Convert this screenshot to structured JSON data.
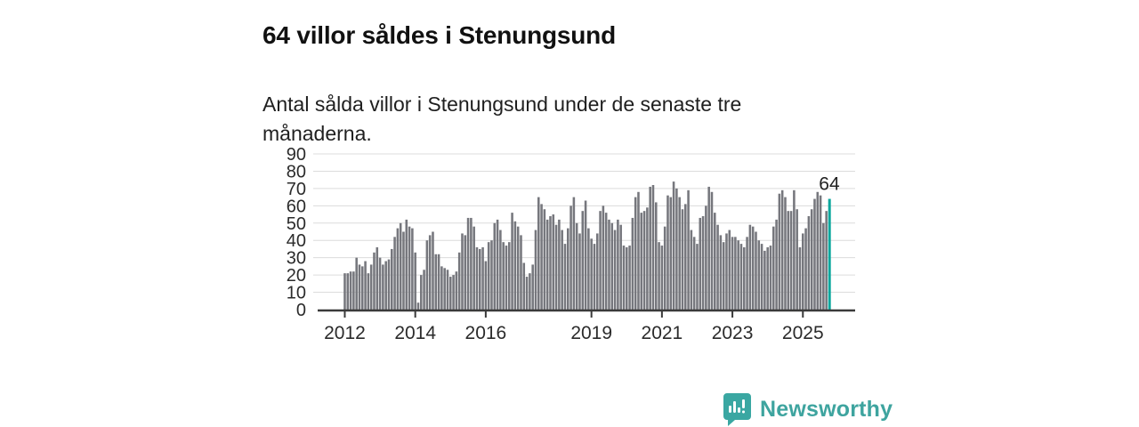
{
  "title": "64 villor såldes i Stenungsund",
  "subtitle": "Antal sålda villor i Stenungsund under de senaste tre månaderna.",
  "annotation_label": "64",
  "branding": {
    "name": "Newsworthy"
  },
  "colors": {
    "bar": "#76777d",
    "highlight": "#0ba79d",
    "grid": "#dcdcdc",
    "axis": "#3a3a3a",
    "tick_text": "#2b2b2b",
    "annotation_text": "#222222",
    "brand": "#3ea49f"
  },
  "chart_data": {
    "type": "bar",
    "title": "64 villor såldes i Stenungsund",
    "subtitle": "Antal sålda villor i Stenungsund under de senaste tre månaderna.",
    "x_start": "2012-01",
    "frequency": "monthly",
    "ylabel": "",
    "xlabel": "",
    "ylim": [
      0,
      90
    ],
    "yticks": [
      0,
      10,
      20,
      30,
      40,
      50,
      60,
      70,
      80,
      90
    ],
    "grid": true,
    "legend": "none",
    "xticks": [
      {
        "label": "2012",
        "month_index": 0
      },
      {
        "label": "2014",
        "month_index": 24
      },
      {
        "label": "2016",
        "month_index": 48
      },
      {
        "label": "2019",
        "month_index": 84
      },
      {
        "label": "2021",
        "month_index": 108
      },
      {
        "label": "2023",
        "month_index": 132
      },
      {
        "label": "2025",
        "month_index": 156
      }
    ],
    "values": [
      21,
      21,
      22,
      22,
      30,
      26,
      25,
      28,
      21,
      26,
      33,
      36,
      30,
      26,
      28,
      29,
      35,
      42,
      47,
      50,
      45,
      52,
      48,
      47,
      33,
      4,
      20,
      23,
      40,
      43,
      45,
      32,
      32,
      25,
      24,
      23,
      19,
      20,
      22,
      33,
      44,
      43,
      53,
      53,
      48,
      36,
      35,
      36,
      28,
      39,
      40,
      50,
      52,
      46,
      39,
      37,
      39,
      56,
      51,
      48,
      43,
      27,
      19,
      21,
      26,
      46,
      65,
      61,
      58,
      52,
      54,
      55,
      49,
      52,
      46,
      38,
      47,
      60,
      65,
      50,
      44,
      57,
      63,
      47,
      41,
      38,
      44,
      57,
      60,
      56,
      52,
      50,
      46,
      52,
      49,
      37,
      36,
      37,
      53,
      65,
      68,
      56,
      57,
      59,
      71,
      72,
      62,
      39,
      37,
      48,
      66,
      65,
      74,
      70,
      65,
      58,
      61,
      69,
      46,
      42,
      38,
      53,
      54,
      60,
      71,
      68,
      56,
      49,
      43,
      39,
      44,
      46,
      42,
      42,
      40,
      38,
      36,
      42,
      49,
      48,
      45,
      40,
      38,
      34,
      36,
      37,
      48,
      52,
      67,
      69,
      65,
      57,
      57,
      69,
      58,
      36,
      44,
      47,
      54,
      58,
      64,
      68,
      66,
      50,
      57,
      64
    ],
    "highlight_index": 165,
    "highlight_value": 64
  }
}
